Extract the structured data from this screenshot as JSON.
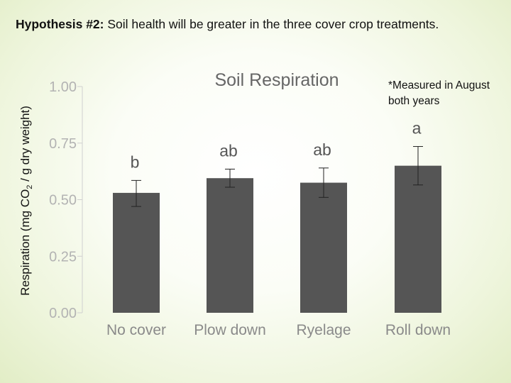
{
  "header": {
    "hypothesis_label": "Hypothesis #2:",
    "hypothesis_text": " Soil health will be greater in the three cover crop treatments."
  },
  "note": "*Measured in August both years",
  "chart_data": {
    "type": "bar",
    "title": "Soil Respiration",
    "ylabel_parts": [
      "Respiration (mg CO",
      "2",
      " / g dry weight)"
    ],
    "xlabel": "",
    "categories": [
      "No cover",
      "Plow down",
      "Ryelage",
      "Roll down"
    ],
    "values": [
      0.53,
      0.595,
      0.575,
      0.65
    ],
    "error_low": [
      0.47,
      0.555,
      0.51,
      0.565
    ],
    "error_high": [
      0.585,
      0.635,
      0.64,
      0.735
    ],
    "significance": [
      "b",
      "ab",
      "ab",
      "a"
    ],
    "ylim": [
      0,
      1
    ],
    "yticks": [
      "0.00",
      "0.25",
      "0.50",
      "0.75",
      "1.00"
    ],
    "bar_color": "#555555",
    "grid": false
  }
}
